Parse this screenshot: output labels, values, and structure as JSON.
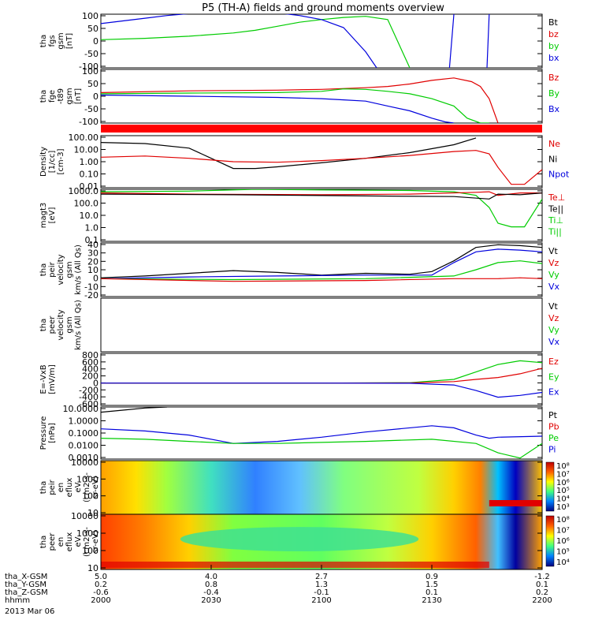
{
  "chart_data": {
    "type": "line",
    "title": "P5 (TH-A) fields and ground moments overview",
    "colors": {
      "black": "#000000",
      "red": "#e00000",
      "green": "#00cc00",
      "blue": "#0000dd",
      "bar": "#ff0000"
    },
    "panels": [
      {
        "id": "fgs",
        "ylabel": [
          "tha",
          "fgs",
          "gsm",
          "[nT]"
        ],
        "yticks": [
          "100",
          "50",
          "0",
          "-50",
          "-100"
        ],
        "ylim": [
          -100,
          100
        ],
        "legend": [
          {
            "t": "Bt",
            "c": "black"
          },
          {
            "t": "bz",
            "c": "red"
          },
          {
            "t": "by",
            "c": "green"
          },
          {
            "t": "bx",
            "c": "blue"
          }
        ],
        "series": [
          {
            "name": "by",
            "color": "green",
            "x": [
              0,
              0.1,
              0.2,
              0.3,
              0.35,
              0.4,
              0.45,
              0.5,
              0.55,
              0.6,
              0.65,
              0.7
            ],
            "y": [
              5,
              10,
              18,
              30,
              40,
              55,
              70,
              80,
              88,
              92,
              80,
              -100
            ]
          },
          {
            "name": "bx",
            "color": "blue",
            "x": [
              0,
              0.05,
              0.1,
              0.15,
              0.2,
              0.25,
              0.3,
              0.35,
              0.4,
              0.45,
              0.5,
              0.55,
              0.6,
              0.625
            ],
            "y": [
              65,
              75,
              85,
              95,
              102,
              108,
              110,
              110,
              105,
              95,
              80,
              50,
              -40,
              -100
            ]
          },
          {
            "name": "bx",
            "color": "blue",
            "x": [
              0.79,
              0.8
            ],
            "y": [
              -100,
              100
            ]
          },
          {
            "name": "bx",
            "color": "blue",
            "x": [
              0.875,
              0.88
            ],
            "y": [
              -100,
              100
            ]
          }
        ]
      },
      {
        "id": "fge",
        "ylabel": [
          "tha",
          "fge",
          "-t89",
          "gsm",
          "[nT]"
        ],
        "yticks": [
          "100",
          "50",
          "0",
          "-50",
          "-100"
        ],
        "ylim": [
          -120,
          100
        ],
        "legend": [
          {
            "t": "Bz",
            "c": "red"
          },
          {
            "t": "By",
            "c": "green"
          },
          {
            "t": "Bx",
            "c": "blue"
          }
        ],
        "series": [
          {
            "name": "Bz",
            "color": "red",
            "x": [
              0,
              0.2,
              0.4,
              0.5,
              0.6,
              0.65,
              0.7,
              0.75,
              0.8,
              0.84,
              0.86,
              0.88,
              0.9
            ],
            "y": [
              5,
              12,
              15,
              18,
              25,
              30,
              40,
              55,
              65,
              50,
              30,
              -20,
              -120
            ]
          },
          {
            "name": "By",
            "color": "green",
            "x": [
              0,
              0.2,
              0.4,
              0.5,
              0.55,
              0.6,
              0.65,
              0.7,
              0.75,
              0.8,
              0.83,
              0.86,
              0.88
            ],
            "y": [
              0,
              3,
              5,
              10,
              20,
              18,
              10,
              0,
              -20,
              -50,
              -100,
              -120,
              -120
            ]
          },
          {
            "name": "Bx",
            "color": "blue",
            "x": [
              0,
              0.2,
              0.4,
              0.5,
              0.55,
              0.6,
              0.65,
              0.7,
              0.75,
              0.78,
              0.8
            ],
            "y": [
              -5,
              -10,
              -15,
              -20,
              -25,
              -30,
              -50,
              -70,
              -100,
              -115,
              -120
            ]
          }
        ]
      },
      {
        "id": "density",
        "ylabel": [
          "Density",
          "[1/cc]",
          "[cm-3]"
        ],
        "yticks": [
          "100.00",
          "10.00",
          "1.00",
          "0.10",
          "0.01"
        ],
        "ylim": [
          -2.3,
          2.3
        ],
        "ylog": true,
        "legend": [
          {
            "t": "Ne",
            "c": "red"
          },
          {
            "t": "Ni",
            "c": "black"
          },
          {
            "t": "Npot",
            "c": "blue"
          }
        ],
        "series": [
          {
            "name": "Ni",
            "color": "black",
            "x": [
              0,
              0.1,
              0.2,
              0.25,
              0.3,
              0.35,
              0.4,
              0.5,
              0.6,
              0.7,
              0.8,
              0.85
            ],
            "y": [
              1.7,
              1.6,
              1.2,
              0.3,
              -0.6,
              -0.6,
              -0.45,
              -0.1,
              0.3,
              0.8,
              1.5,
              2.1
            ]
          },
          {
            "name": "Ne",
            "color": "red",
            "x": [
              0,
              0.1,
              0.2,
              0.3,
              0.4,
              0.5,
              0.6,
              0.7,
              0.8,
              0.85,
              0.88,
              0.9,
              0.93,
              0.96,
              1
            ],
            "y": [
              0.4,
              0.5,
              0.3,
              0,
              -0.05,
              0.1,
              0.3,
              0.55,
              0.9,
              1,
              0.7,
              -0.5,
              -2.0,
              -2.0,
              -0.7
            ]
          }
        ]
      },
      {
        "id": "temp",
        "ylabel": [
          "magt3",
          "[eV]"
        ],
        "yticks": [
          "1000.0",
          "100.0",
          "10.0",
          "1.0",
          "0.1"
        ],
        "ylim": [
          -1,
          3.3
        ],
        "ylog": true,
        "legend": [
          {
            "t": "Te⊥",
            "c": "red"
          },
          {
            "t": "Te||",
            "c": "black"
          },
          {
            "t": "Ti⊥",
            "c": "green"
          },
          {
            "t": "Ti||",
            "c": "green"
          }
        ],
        "series": [
          {
            "name": "Ti⊥",
            "color": "green",
            "x": [
              0,
              0.2,
              0.35,
              0.5,
              0.7,
              0.8,
              0.85,
              0.88,
              0.9,
              0.93,
              0.96,
              1
            ],
            "y": [
              3.1,
              3.15,
              3.3,
              3.25,
              3.2,
              3.1,
              2.8,
              1.8,
              0.5,
              0.2,
              0.2,
              2.5
            ]
          },
          {
            "name": "Te⊥",
            "color": "red",
            "x": [
              0,
              0.2,
              0.5,
              0.7,
              0.85,
              0.88,
              0.9,
              0.95,
              1
            ],
            "y": [
              3.0,
              2.9,
              2.85,
              2.9,
              3.05,
              3.1,
              2.8,
              3.0,
              3.0
            ]
          },
          {
            "name": "Te||",
            "color": "black",
            "x": [
              0,
              0.3,
              0.6,
              0.8,
              0.88,
              0.9,
              0.95,
              1
            ],
            "y": [
              2.9,
              2.85,
              2.75,
              2.7,
              2.5,
              2.9,
              2.85,
              3.0
            ]
          }
        ]
      },
      {
        "id": "peir",
        "ylabel": [
          "tha",
          "peir",
          "velocity",
          "gsm",
          "km/s (All Qs)"
        ],
        "yticks": [
          "40",
          "30",
          "20",
          "10",
          "0",
          "-10",
          "-20"
        ],
        "ylim": [
          -20,
          40
        ],
        "legend": [
          {
            "t": "Vt",
            "c": "black"
          },
          {
            "t": "Vz",
            "c": "red"
          },
          {
            "t": "Vy",
            "c": "green"
          },
          {
            "t": "Vx",
            "c": "blue"
          }
        ],
        "series": [
          {
            "name": "Vt",
            "color": "black",
            "x": [
              0,
              0.1,
              0.2,
              0.3,
              0.4,
              0.5,
              0.6,
              0.7,
              0.75,
              0.8,
              0.85,
              0.9,
              0.95,
              1
            ],
            "y": [
              1,
              3,
              6,
              9,
              7,
              4,
              6,
              5,
              8,
              20,
              35,
              38,
              37,
              35
            ]
          },
          {
            "name": "Vx",
            "color": "blue",
            "x": [
              0,
              0.2,
              0.4,
              0.6,
              0.75,
              0.8,
              0.85,
              0.9,
              0.95,
              1
            ],
            "y": [
              0,
              2,
              3,
              4,
              4,
              18,
              30,
              33,
              32,
              30
            ]
          },
          {
            "name": "Vy",
            "color": "green",
            "x": [
              0,
              0.3,
              0.6,
              0.8,
              0.85,
              0.9,
              0.95,
              1
            ],
            "y": [
              0,
              -1,
              0,
              3,
              10,
              18,
              20,
              17
            ]
          },
          {
            "name": "Vz",
            "color": "red",
            "x": [
              0,
              0.3,
              0.6,
              0.8,
              0.85,
              0.9,
              0.95,
              1
            ],
            "y": [
              0,
              -3,
              -2,
              0,
              0,
              0,
              1,
              0
            ]
          }
        ]
      },
      {
        "id": "peer",
        "ylabel": [
          "tha",
          "peer",
          "velocity",
          "gsm",
          "km/s (All Qs)"
        ],
        "yticks": [],
        "ylim": [
          -1,
          1
        ],
        "legend": [
          {
            "t": "Vt",
            "c": "black"
          },
          {
            "t": "Vz",
            "c": "red"
          },
          {
            "t": "Vy",
            "c": "green"
          },
          {
            "t": "Vx",
            "c": "blue"
          }
        ],
        "series": []
      },
      {
        "id": "efield",
        "ylabel": [
          "E=-VxB",
          "[mV/m]"
        ],
        "yticks": [
          "800",
          "600",
          "400",
          "200",
          "0",
          "-200",
          "-400",
          "-600"
        ],
        "ylim": [
          -600,
          800
        ],
        "legend": [
          {
            "t": "Ez",
            "c": "red"
          },
          {
            "t": "Ey",
            "c": "green"
          },
          {
            "t": "Ex",
            "c": "blue"
          }
        ],
        "series": [
          {
            "name": "Ey",
            "color": "green",
            "x": [
              0,
              0.5,
              0.7,
              0.8,
              0.85,
              0.9,
              0.95,
              1
            ],
            "y": [
              0,
              0,
              10,
              100,
              300,
              500,
              600,
              550
            ]
          },
          {
            "name": "Ez",
            "color": "red",
            "x": [
              0,
              0.5,
              0.7,
              0.8,
              0.85,
              0.9,
              0.95,
              1
            ],
            "y": [
              0,
              0,
              5,
              40,
              100,
              150,
              250,
              400
            ]
          },
          {
            "name": "Ex",
            "color": "blue",
            "x": [
              0,
              0.5,
              0.7,
              0.8,
              0.85,
              0.9,
              0.95,
              1
            ],
            "y": [
              0,
              0,
              -5,
              -50,
              -200,
              -380,
              -330,
              -250
            ]
          }
        ]
      },
      {
        "id": "pressure",
        "ylabel": [
          "Pressure",
          "[nPa]"
        ],
        "yticks": [
          "10.0000",
          "1.0000",
          "0.1000",
          "0.0100",
          "0.0010"
        ],
        "ylim": [
          -3.5,
          1.5
        ],
        "ylog": true,
        "legend": [
          {
            "t": "Pt",
            "c": "black"
          },
          {
            "t": "Pb",
            "c": "red"
          },
          {
            "t": "Pe",
            "c": "green"
          },
          {
            "t": "Pi",
            "c": "blue"
          }
        ],
        "series": [
          {
            "name": "Pt",
            "color": "black",
            "x": [
              0,
              0.05,
              0.1,
              0.15
            ],
            "y": [
              1.0,
              1.2,
              1.4,
              1.5
            ]
          },
          {
            "name": "Pi",
            "color": "blue",
            "x": [
              0,
              0.1,
              0.2,
              0.3,
              0.4,
              0.5,
              0.6,
              0.75,
              0.8,
              0.85,
              0.88,
              0.9,
              1
            ],
            "y": [
              -0.6,
              -0.8,
              -1.2,
              -2.0,
              -1.8,
              -1.4,
              -0.9,
              -0.3,
              -0.5,
              -1.2,
              -1.5,
              -1.4,
              -1.3
            ]
          },
          {
            "name": "Pe",
            "color": "green",
            "x": [
              0,
              0.1,
              0.2,
              0.3,
              0.4,
              0.5,
              0.6,
              0.75,
              0.85,
              0.9,
              0.95,
              1
            ],
            "y": [
              -1.5,
              -1.6,
              -1.8,
              -2.0,
              -2.0,
              -1.9,
              -1.8,
              -1.6,
              -2.0,
              -2.9,
              -3.4,
              -2.0
            ]
          }
        ]
      },
      {
        "id": "peir_eflux",
        "type": "heatmap",
        "ylabel": [
          "tha",
          "peir",
          "en",
          "eflux",
          "eV",
          "(cm2-s-",
          "sr-eV)"
        ],
        "yticks": [
          "10000",
          "1000",
          "100",
          "10"
        ],
        "cbar": [
          "10⁸",
          "10⁷",
          "10⁶",
          "10⁵",
          "10⁴",
          "10³"
        ]
      },
      {
        "id": "peer_eflux",
        "type": "heatmap",
        "ylabel": [
          "tha",
          "peer",
          "en",
          "eflux",
          "eV",
          "(cm2-s-",
          "sr-eV)"
        ],
        "yticks": [
          "10000",
          "1000",
          "100",
          "10"
        ],
        "cbar": [
          "10⁸",
          "10⁷",
          "10⁶",
          "10⁵",
          "10⁴"
        ]
      }
    ],
    "xaxis": {
      "rows": [
        {
          "label": "tha_X-GSM",
          "values": [
            "5.0",
            "4.0",
            "2.7",
            "0.9",
            "-1.2"
          ]
        },
        {
          "label": "tha_Y-GSM",
          "values": [
            "0.2",
            "0.8",
            "1.3",
            "1.5",
            "0.1"
          ]
        },
        {
          "label": "tha_Z-GSM",
          "values": [
            "-0.6",
            "-0.4",
            "-0.1",
            "0.1",
            "0.2"
          ]
        },
        {
          "label": "hhmm",
          "values": [
            "2000",
            "2030",
            "2100",
            "2130",
            "2200"
          ]
        }
      ],
      "date": "2013 Mar 06"
    }
  }
}
